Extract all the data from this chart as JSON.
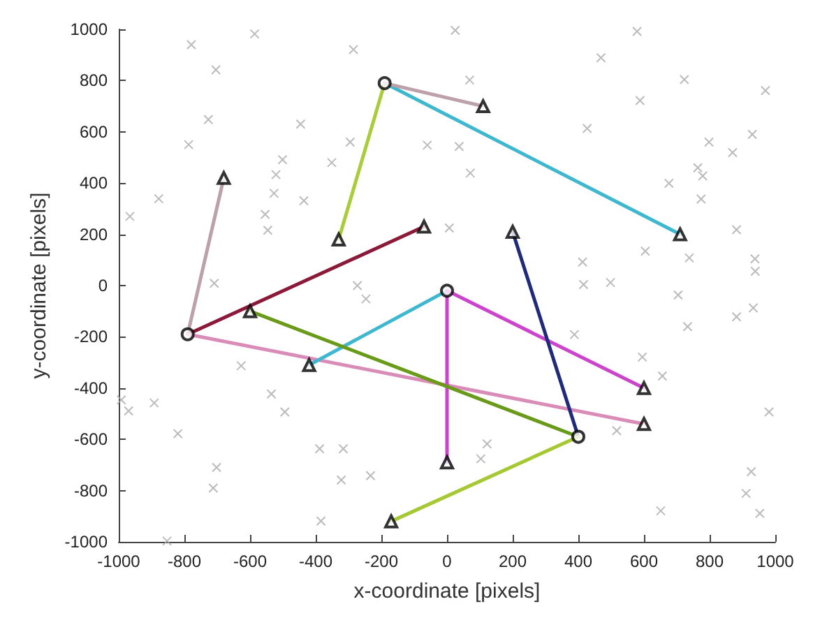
{
  "chart_data": {
    "type": "line",
    "xlabel": "x-coordinate [pixels]",
    "ylabel": "y-coordinate [pixels]",
    "xlim": [
      -1000,
      1000
    ],
    "ylim": [
      -1000,
      1000
    ],
    "xticks": [
      -1000,
      -800,
      -600,
      -400,
      -200,
      0,
      200,
      400,
      600,
      800,
      1000
    ],
    "yticks": [
      -1000,
      -800,
      -600,
      -400,
      -200,
      0,
      200,
      400,
      600,
      800,
      1000
    ],
    "grid": false,
    "series": [
      {
        "type": "scatter",
        "marker": "cross",
        "color": "#aaaaaa",
        "x": [
          -779,
          -586,
          -704,
          -285,
          -727,
          -787,
          -446,
          -501,
          -878,
          -521,
          -527,
          -436,
          -554,
          -546,
          -966,
          -351,
          -295,
          -60,
          -273,
          -709,
          25,
          579,
          469,
          723,
          970,
          588,
          69,
          427,
          37,
          798,
          930,
          870,
          764,
          779,
          71,
          676,
          774,
          7,
          882,
          604,
          738,
          413,
          938,
          939,
          416,
          498,
          704,
          933,
          882,
          733,
          388,
          595,
          656,
          981,
          517,
          122,
          103,
          927,
          911,
          953,
          651,
          -247,
          -627,
          -535,
          -494,
          -892,
          -992,
          -970,
          -820,
          -388,
          -316,
          -702,
          -712,
          -322,
          -233,
          -384,
          -853
        ],
        "values": [
          940,
          982,
          842,
          921,
          648,
          550,
          630,
          491,
          339,
          433,
          360,
          331,
          278,
          216,
          270,
          480,
          560,
          548,
          0,
          9,
          996,
          992,
          889,
          804,
          761,
          722,
          802,
          613,
          543,
          560,
          590,
          519,
          460,
          428,
          439,
          399,
          338,
          225,
          218,
          134,
          108,
          92,
          104,
          56,
          4,
          12,
          -37,
          -87,
          -122,
          -160,
          -191,
          -279,
          -353,
          -493,
          -566,
          -618,
          -676,
          -726,
          -811,
          -889,
          -879,
          -52,
          -313,
          -423,
          -493,
          -458,
          -446,
          -489,
          -578,
          -637,
          -637,
          -710,
          -790,
          -759,
          -742,
          -919,
          -997
        ]
      },
      {
        "marker": "none",
        "color": "#3fb8cf",
        "x": [
          -190,
          710
        ],
        "values": [
          790,
          200
        ]
      },
      {
        "marker": "none",
        "color": "#a8cc3a",
        "x": [
          -190,
          -330
        ],
        "values": [
          790,
          180
        ]
      },
      {
        "type": "line",
        "marker": "none",
        "color": "#bca0aa",
        "x": [
          -190,
          110
        ],
        "values": [
          790,
          700
        ]
      },
      {
        "type": "line",
        "marker": "none",
        "color": "#bca0aa",
        "x": [
          -790,
          -680
        ],
        "values": [
          -190,
          420
        ]
      },
      {
        "type": "line",
        "marker": "none",
        "color": "#8b1a3a",
        "x": [
          -790,
          -70
        ],
        "values": [
          -190,
          230
        ]
      },
      {
        "type": "line",
        "marker": "none",
        "color": "#d98cb8",
        "x": [
          -790,
          600
        ],
        "values": [
          -190,
          -540
        ]
      },
      {
        "type": "line",
        "marker": "none",
        "color": "#3fb8cf",
        "x": [
          0,
          -420
        ],
        "values": [
          -20,
          -310
        ]
      },
      {
        "type": "line",
        "marker": "none",
        "color": "#cc44cc",
        "x": [
          0,
          600
        ],
        "values": [
          -20,
          -400
        ]
      },
      {
        "type": "line",
        "marker": "none",
        "color": "#cc44cc",
        "x": [
          0,
          0
        ],
        "values": [
          -20,
          -690
        ]
      },
      {
        "type": "line",
        "marker": "none",
        "color": "#6a9a1a",
        "x": [
          400,
          -600
        ],
        "values": [
          -590,
          -100
        ]
      },
      {
        "type": "line",
        "marker": "none",
        "color": "#1f2a7a",
        "x": [
          400,
          200
        ],
        "values": [
          -590,
          210
        ]
      },
      {
        "type": "line",
        "marker": "none",
        "color": "#a6c832",
        "x": [
          400,
          -170
        ],
        "values": [
          -590,
          -920
        ]
      },
      {
        "type": "scatter",
        "marker": "circle",
        "color": "#000000",
        "x": [
          -190,
          -790,
          0,
          400
        ],
        "values": [
          790,
          -190,
          -20,
          -590
        ]
      },
      {
        "type": "scatter",
        "marker": "triangle",
        "color": "#000000",
        "x": [
          110,
          710,
          -330,
          -680,
          -70,
          600,
          -420,
          600,
          0,
          -600,
          200,
          -170
        ],
        "values": [
          700,
          200,
          180,
          420,
          230,
          -540,
          -310,
          -400,
          -690,
          -100,
          210,
          -920
        ]
      }
    ]
  }
}
